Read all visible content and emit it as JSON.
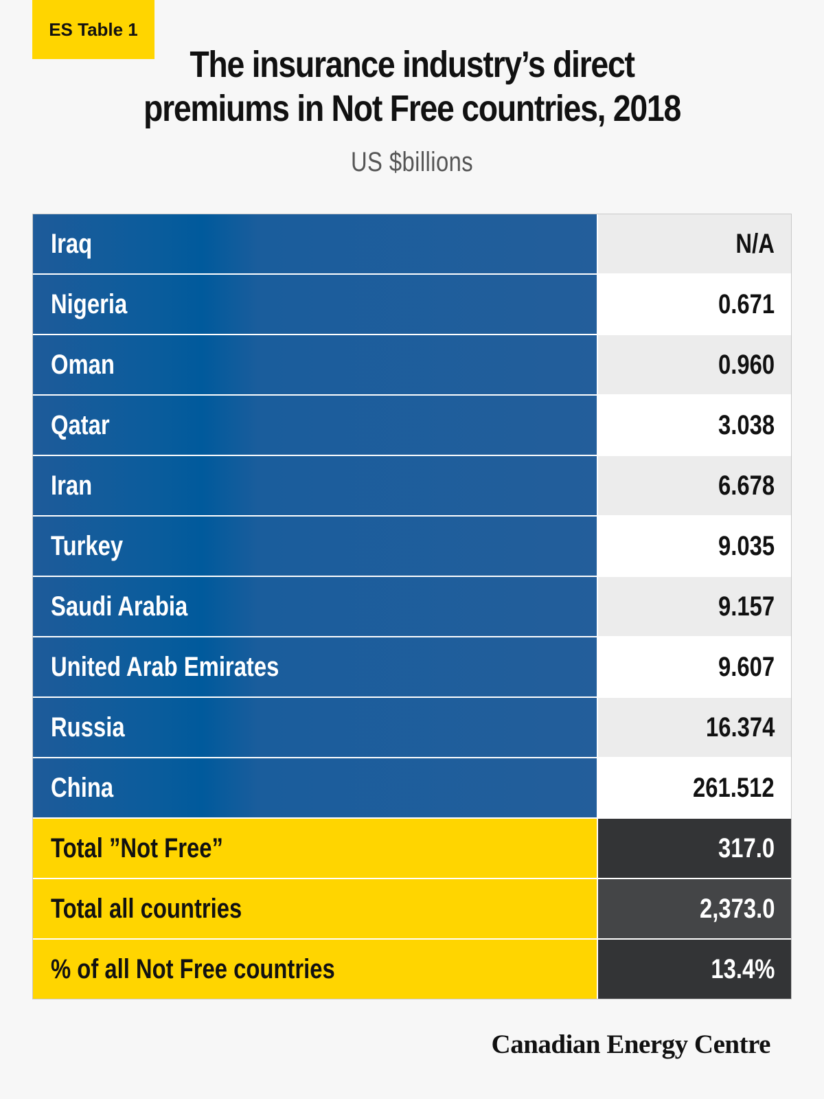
{
  "tag": "ES Table 1",
  "title_line1": "The insurance industry’s direct",
  "title_line2": "premiums in Not Free countries, 2018",
  "subtitle": "US $billions",
  "rows": [
    {
      "country": "Iraq",
      "value": "N/A"
    },
    {
      "country": "Nigeria",
      "value": "0.671"
    },
    {
      "country": "Oman",
      "value": "0.960"
    },
    {
      "country": "Qatar",
      "value": "3.038"
    },
    {
      "country": "Iran",
      "value": "6.678"
    },
    {
      "country": "Turkey",
      "value": "9.035"
    },
    {
      "country": "Saudi Arabia",
      "value": "9.157"
    },
    {
      "country": "United Arab Emirates",
      "value": "9.607"
    },
    {
      "country": "Russia",
      "value": "16.374"
    },
    {
      "country": "China",
      "value": "261.512"
    }
  ],
  "totals": [
    {
      "label": "Total ”Not Free”",
      "value": "317.0"
    },
    {
      "label": "Total all countries",
      "value": "2,373.0"
    },
    {
      "label": "%  of all Not Free countries",
      "value": "13.4%"
    }
  ],
  "brand": "Canadian Energy Centre",
  "colors": {
    "blue": "#235e9b",
    "yellow": "#ffd500",
    "dark": "#333436"
  }
}
